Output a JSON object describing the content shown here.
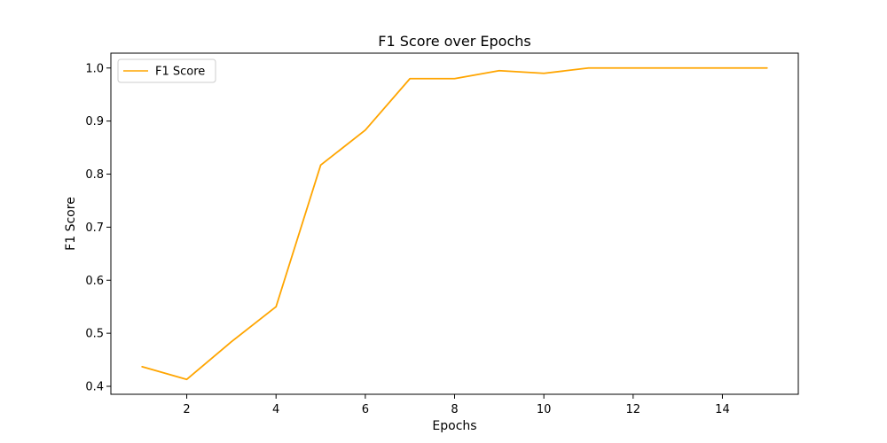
{
  "chart_data": {
    "type": "line",
    "title": "F1 Score over Epochs",
    "xlabel": "Epochs",
    "ylabel": "F1 Score",
    "xlim": [
      0.3,
      15.7
    ],
    "ylim": [
      0.385,
      1.028
    ],
    "xticks": [
      2,
      4,
      6,
      8,
      10,
      12,
      14
    ],
    "yticks": [
      0.4,
      0.5,
      0.6,
      0.7,
      0.8,
      0.9,
      1.0
    ],
    "xtick_labels": [
      "2",
      "4",
      "6",
      "8",
      "10",
      "12",
      "14"
    ],
    "ytick_labels": [
      "0.4",
      "0.5",
      "0.6",
      "0.7",
      "0.8",
      "0.9",
      "1.0"
    ],
    "grid": false,
    "legend": {
      "placement": "top-left",
      "entries": [
        "F1 Score"
      ]
    },
    "series": [
      {
        "name": "F1 Score",
        "color": "#ffa500",
        "x": [
          1,
          2,
          3,
          4,
          5,
          6,
          7,
          8,
          9,
          10,
          11,
          12,
          13,
          14,
          15
        ],
        "y": [
          0.437,
          0.413,
          0.484,
          0.55,
          0.817,
          0.883,
          0.98,
          0.98,
          0.995,
          0.99,
          1.0,
          1.0,
          1.0,
          1.0,
          1.0
        ]
      }
    ]
  }
}
